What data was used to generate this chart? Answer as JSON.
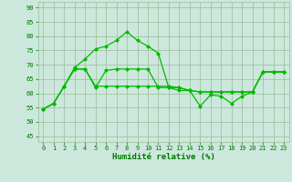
{
  "line1_x": [
    0,
    1,
    2,
    3,
    4,
    5,
    6,
    7,
    8,
    9,
    10,
    11,
    12,
    13,
    14,
    15,
    16,
    17,
    18,
    19,
    20,
    21,
    22,
    23
  ],
  "line1_y": [
    54.5,
    56.5,
    62.5,
    69,
    72,
    75.5,
    76.5,
    78.5,
    81.5,
    78.5,
    76.5,
    74,
    62,
    61,
    61,
    55.5,
    59.5,
    59,
    56.5,
    59,
    60.5,
    67.5,
    67.5,
    67.5
  ],
  "line2_x": [
    0,
    1,
    2,
    3,
    4,
    5,
    6,
    7,
    8,
    9,
    10,
    11,
    12,
    13,
    14,
    15,
    16,
    17,
    18,
    19,
    20,
    21,
    22,
    23
  ],
  "line2_y": [
    54.5,
    56.5,
    62.5,
    68.5,
    68.5,
    62,
    68,
    68.5,
    68.5,
    68.5,
    68.5,
    62,
    62,
    62,
    61,
    60.5,
    60.5,
    60.5,
    60.5,
    60.5,
    60.5,
    67.5,
    67.5,
    67.5
  ],
  "line3_x": [
    0,
    1,
    2,
    3,
    4,
    5,
    6,
    7,
    8,
    9,
    10,
    11,
    12,
    13,
    14,
    15,
    16,
    17,
    18,
    19,
    20,
    21,
    22,
    23
  ],
  "line3_y": [
    54.5,
    56.5,
    62.5,
    68.5,
    68.5,
    62.5,
    62.5,
    62.5,
    62.5,
    62.5,
    62.5,
    62.5,
    62.5,
    62,
    61,
    60.5,
    60.5,
    60.5,
    60.5,
    60.5,
    60.5,
    67.5,
    67.5,
    67.5
  ],
  "line_color": "#00bb00",
  "marker_style": "D",
  "marker_size": 2.0,
  "bg_color": "#cce8dc",
  "grid_color": "#99bb99",
  "xlabel": "Humidité relative (%)",
  "xlabel_color": "#007700",
  "ylabel_ticks": [
    45,
    50,
    55,
    60,
    65,
    70,
    75,
    80,
    85,
    90
  ],
  "xlim": [
    -0.5,
    23.5
  ],
  "ylim": [
    43,
    92
  ],
  "xtick_labels": [
    "0",
    "1",
    "2",
    "3",
    "4",
    "5",
    "6",
    "7",
    "8",
    "9",
    "10",
    "11",
    "12",
    "13",
    "14",
    "15",
    "16",
    "17",
    "18",
    "19",
    "20",
    "21",
    "22",
    "23"
  ],
  "tick_fontsize": 5.0,
  "xlabel_fontsize": 6.5,
  "tick_color": "#007700",
  "linewidth": 0.9
}
